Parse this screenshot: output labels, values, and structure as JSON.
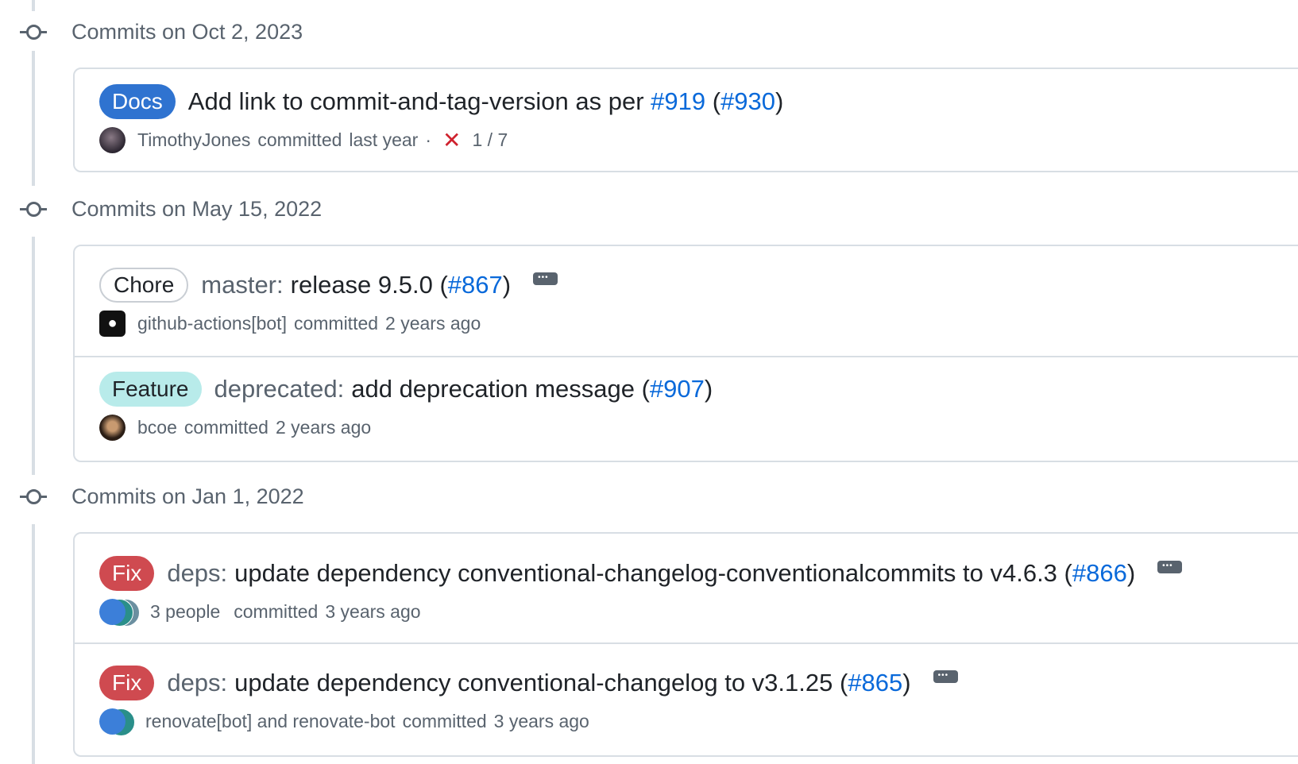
{
  "groups": [
    {
      "date": "Commits on Oct 2, 2023",
      "commits": [
        {
          "badge": "Docs",
          "badge_bg": "#2f73d0",
          "badge_color": "#ffffff",
          "prefix": "",
          "message": "Add link to commit-and-tag-version as per ",
          "link1": "#919",
          "mid": " (",
          "link2": "#930",
          "suffix": ")",
          "author": "TimothyJones",
          "action": "committed",
          "time": "last year",
          "separator": "·",
          "status_icon": "x-icon",
          "status_count": "1 / 7"
        }
      ]
    },
    {
      "date": "Commits on May 15, 2022",
      "commits": [
        {
          "badge": "Chore",
          "prefix": "master:",
          "message": "release 9.5.0 (",
          "link": "#867",
          "suffix": ")",
          "author": "github-actions[bot]",
          "action": "committed",
          "time": "2 years ago"
        },
        {
          "badge": "Feature",
          "badge_bg": "#b8ebea",
          "prefix": "deprecated:",
          "message": "add deprecation message (",
          "link": "#907",
          "suffix": ")",
          "author": "bcoe",
          "action": "committed",
          "time": "2 years ago"
        }
      ]
    },
    {
      "date": "Commits on Jan 1, 2022",
      "commits": [
        {
          "badge": "Fix",
          "badge_bg": "#cf4a50",
          "prefix": "deps:",
          "message": "update dependency conventional-changelog-conventionalcommits to v4.6.3 (",
          "link": "#866",
          "suffix": ")",
          "author": "3 people",
          "action": "committed",
          "time": "3 years ago"
        },
        {
          "badge": "Fix",
          "badge_bg": "#cf4a50",
          "prefix": "deps:",
          "message": "update dependency conventional-changelog to v3.1.25 (",
          "link": "#865",
          "suffix": ")",
          "author": "renovate[bot] and renovate-bot",
          "action": "committed",
          "time": "3 years ago"
        }
      ]
    }
  ],
  "colors": {
    "link": "#0969da",
    "muted": "#59636e",
    "border": "#d8dee4",
    "error": "#cf222e"
  }
}
